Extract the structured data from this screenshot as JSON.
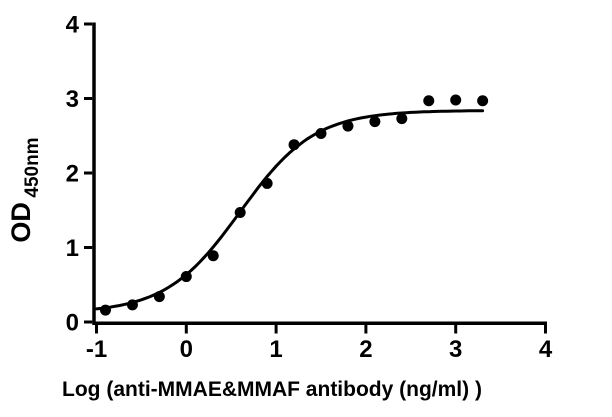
{
  "figure": {
    "background_color": "#ffffff",
    "foreground_color": "#000000"
  },
  "chart_data": {
    "type": "scatter",
    "title": "",
    "xlabel": "Log (anti-MMAE&MMAF antibody (ng/ml) )",
    "ylabel_main": "OD",
    "ylabel_subscript": "450nm",
    "xlim": [
      -1,
      4
    ],
    "ylim": [
      0,
      4
    ],
    "xticks": [
      -1,
      0,
      1,
      2,
      3,
      4
    ],
    "yticks": [
      0,
      1,
      2,
      3,
      4
    ],
    "grid": false,
    "legend_position": "none",
    "marker": {
      "shape": "filled-circle",
      "color": "#000000",
      "radius_px": 5.5
    },
    "points": [
      {
        "x": -0.9,
        "y": 0.16
      },
      {
        "x": -0.6,
        "y": 0.23
      },
      {
        "x": -0.3,
        "y": 0.34
      },
      {
        "x": 0.0,
        "y": 0.61
      },
      {
        "x": 0.3,
        "y": 0.89
      },
      {
        "x": 0.6,
        "y": 1.47
      },
      {
        "x": 0.9,
        "y": 1.86
      },
      {
        "x": 1.2,
        "y": 2.38
      },
      {
        "x": 1.5,
        "y": 2.53
      },
      {
        "x": 1.8,
        "y": 2.63
      },
      {
        "x": 2.1,
        "y": 2.69
      },
      {
        "x": 2.4,
        "y": 2.73
      },
      {
        "x": 2.7,
        "y": 2.97
      },
      {
        "x": 3.0,
        "y": 2.98
      },
      {
        "x": 3.3,
        "y": 2.97
      }
    ],
    "fit_curve": {
      "model": "four_parameter_logistic",
      "bottom": 0.12,
      "top": 2.84,
      "log_ec50": 0.6,
      "hill_slope": 1.05,
      "x_start": -1.0,
      "x_end": 3.3,
      "color": "#000000",
      "stroke_width_px": 3
    }
  }
}
